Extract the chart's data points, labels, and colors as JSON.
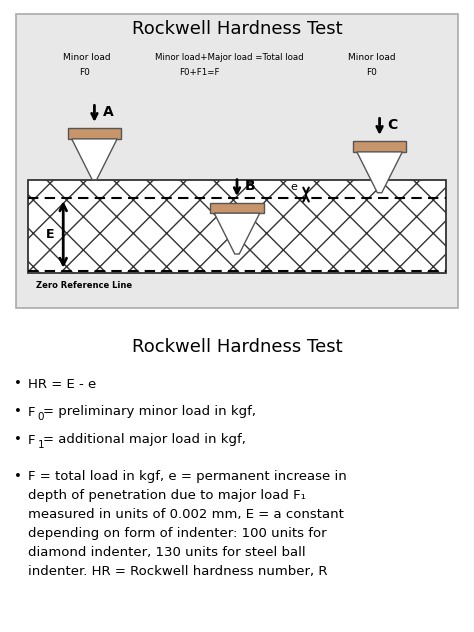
{
  "title1": "Rockwell Hardness Test",
  "title2": "Rockwell Hardness Test",
  "indenter_top_color": "#c8956a",
  "material_hatch": "x",
  "labels_A_line1": "Minor load",
  "labels_A_line2": "F0",
  "labels_B_line1": "Minor load+Major load =Total load",
  "labels_B_line2": "F0+F1=F",
  "labels_C_line1": "Minor load",
  "labels_C_line2": "F0",
  "ref_line_label": "Zero Reference Line",
  "diagram_bg": "#e8e8e8",
  "diagram_border": "#aaaaaa",
  "arrow_color": "#111111",
  "text_color": "#111111"
}
